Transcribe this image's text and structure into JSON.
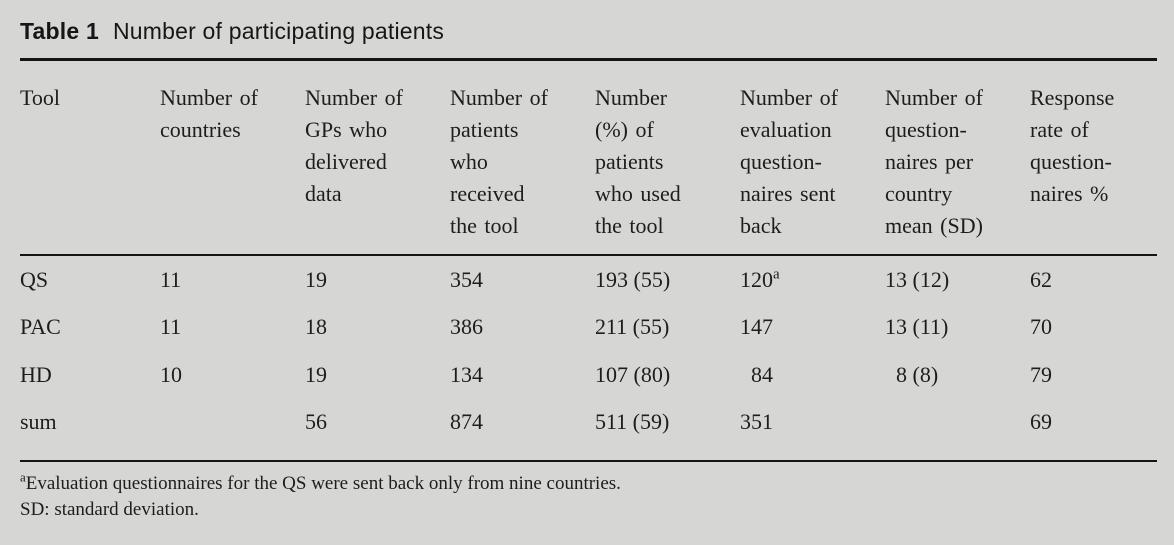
{
  "title": {
    "label": "Table 1",
    "text": "Number of participating patients"
  },
  "table": {
    "columns": [
      "Tool",
      "Number of\ncountries",
      "Number of\nGPs who\ndelivered\ndata",
      "Number of\npatients\nwho\nreceived\nthe tool",
      "Number\n(%) of\npatients\nwho used\nthe tool",
      "Number of\nevaluation\nquestion-\nnaires sent\nback",
      "Number of\nquestion-\nnaires per\ncountry\nmean (SD)",
      "Response\nrate of\nquestion-\nnaires %"
    ],
    "rows": [
      {
        "tool": "QS",
        "countries": "11",
        "gps": "19",
        "received": "354",
        "used": "193 (55)",
        "sent_back": "120",
        "sent_back_sup": "a",
        "per_country": "13 (12)",
        "response": "62"
      },
      {
        "tool": "PAC",
        "countries": "11",
        "gps": "18",
        "received": "386",
        "used": "211 (55)",
        "sent_back": "147",
        "per_country": "13 (11)",
        "response": "70"
      },
      {
        "tool": "HD",
        "countries": "10",
        "gps": "19",
        "received": "134",
        "used": "107 (80)",
        "sent_back": "  84",
        "per_country": "  8 (8)",
        "response": "79"
      },
      {
        "tool": "sum",
        "countries": "",
        "gps": "56",
        "received": "874",
        "used": "511 (59)",
        "sent_back": "351",
        "per_country": "",
        "response": "69"
      }
    ]
  },
  "footnotes": [
    {
      "marker": "a",
      "text": "Evaluation questionnaires for the QS were sent back only from nine countries."
    },
    {
      "marker": "",
      "text": "SD: standard deviation."
    }
  ],
  "colors": {
    "background": "#d6d6d4",
    "text": "#1e1d1b",
    "rule": "#141414"
  }
}
